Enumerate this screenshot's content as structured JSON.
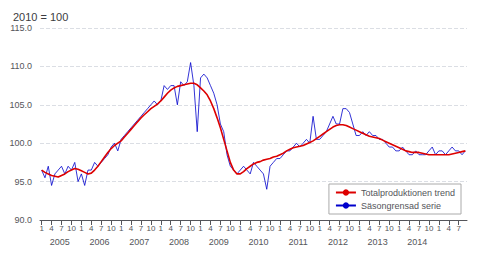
{
  "chart_data": {
    "type": "line",
    "title": "2010 = 100",
    "categories": [
      "1",
      null,
      null,
      "4",
      null,
      null,
      "7",
      null,
      null,
      "10",
      null,
      null,
      "1",
      null,
      null,
      "4",
      null,
      null,
      "7",
      null,
      null,
      "10",
      null,
      null,
      "1",
      null,
      null,
      "4",
      null,
      null,
      "7",
      null,
      null,
      "10",
      null,
      null,
      "1",
      null,
      null,
      "4",
      null,
      null,
      "7",
      null,
      null,
      "10",
      null,
      null,
      "1",
      null,
      null,
      "4",
      null,
      null,
      "7",
      null,
      null,
      "10",
      null,
      null,
      "1",
      null,
      null,
      "4",
      null,
      null,
      "7",
      null,
      null,
      "10",
      null,
      null,
      "1",
      null,
      null,
      "4",
      null,
      null,
      "7",
      null,
      null,
      "10",
      null,
      null,
      "1",
      null,
      null,
      "4",
      null,
      null,
      "7",
      null,
      null,
      "10",
      null,
      null,
      "1",
      null,
      null,
      "4",
      null,
      null,
      "7",
      null,
      null,
      "10",
      null,
      null,
      "1",
      null,
      null,
      "4",
      null,
      null,
      "7",
      null,
      null,
      "10",
      null,
      null,
      "1",
      null,
      null,
      "4",
      null,
      null,
      "7",
      null,
      null
    ],
    "annotations": [
      "2005",
      "2006",
      "2007",
      "2008",
      "2009",
      "2010",
      "2011",
      "2012",
      "2013",
      "2014"
    ],
    "series": [
      {
        "name": "Totalproduktionen trend",
        "color": "#dd0000",
        "line_style": "solid",
        "values": [
          96.5,
          96.2,
          96.0,
          95.8,
          95.7,
          95.6,
          95.8,
          96.0,
          96.3,
          96.5,
          96.7,
          96.6,
          96.4,
          96.2,
          96.0,
          96.1,
          96.5,
          97.0,
          97.6,
          98.2,
          98.8,
          99.3,
          99.7,
          100.0,
          100.3,
          100.8,
          101.3,
          101.8,
          102.3,
          102.8,
          103.3,
          103.7,
          104.1,
          104.5,
          104.8,
          105.1,
          105.5,
          106.0,
          106.5,
          106.9,
          107.2,
          107.4,
          107.5,
          107.6,
          107.7,
          107.8,
          107.8,
          107.6,
          107.2,
          106.8,
          106.3,
          105.5,
          104.5,
          103.3,
          102.0,
          100.5,
          99.0,
          97.5,
          96.5,
          96.0,
          96.0,
          96.3,
          96.7,
          97.0,
          97.3,
          97.5,
          97.6,
          97.8,
          97.9,
          98.0,
          98.2,
          98.3,
          98.5,
          98.7,
          99.0,
          99.2,
          99.4,
          99.5,
          99.6,
          99.7,
          99.9,
          100.1,
          100.3,
          100.6,
          100.9,
          101.2,
          101.5,
          101.8,
          102.1,
          102.3,
          102.4,
          102.4,
          102.3,
          102.1,
          101.9,
          101.7,
          101.5,
          101.3,
          101.1,
          100.9,
          100.8,
          100.7,
          100.6,
          100.4,
          100.2,
          100.0,
          99.8,
          99.6,
          99.4,
          99.2,
          99.0,
          98.9,
          98.8,
          98.8,
          98.8,
          98.7,
          98.6,
          98.5,
          98.5,
          98.5,
          98.5,
          98.5,
          98.5,
          98.5,
          98.6,
          98.7,
          98.8,
          98.9,
          99.0
        ]
      },
      {
        "name": "Säsongrensad serie",
        "color": "#0000cc",
        "line_style": "solid",
        "values": [
          96.5,
          95.5,
          97.0,
          94.5,
          96.0,
          96.5,
          97.0,
          96.0,
          97.0,
          96.5,
          97.5,
          95.0,
          96.0,
          94.5,
          96.5,
          96.5,
          97.5,
          97.0,
          97.5,
          98.0,
          98.5,
          99.5,
          100.0,
          99.0,
          100.5,
          101.0,
          101.5,
          102.0,
          102.5,
          103.0,
          103.5,
          104.0,
          104.5,
          105.0,
          105.5,
          105.0,
          105.5,
          107.5,
          107.0,
          107.5,
          107.5,
          105.0,
          108.0,
          107.5,
          108.0,
          110.5,
          107.5,
          101.5,
          108.5,
          109.0,
          108.5,
          107.5,
          106.5,
          105.0,
          102.5,
          101.5,
          98.5,
          97.0,
          96.5,
          96.0,
          96.5,
          97.0,
          96.5,
          96.0,
          97.5,
          97.0,
          96.5,
          96.0,
          94.0,
          97.0,
          97.5,
          98.0,
          98.0,
          98.5,
          99.0,
          99.0,
          99.5,
          100.0,
          99.5,
          100.0,
          100.5,
          100.0,
          103.5,
          100.5,
          100.5,
          101.0,
          101.5,
          102.5,
          103.5,
          102.5,
          102.5,
          104.5,
          104.5,
          104.0,
          102.5,
          101.0,
          101.0,
          101.5,
          101.0,
          101.5,
          101.0,
          101.0,
          100.5,
          100.5,
          100.0,
          99.5,
          99.5,
          99.0,
          99.0,
          99.5,
          99.0,
          98.5,
          98.5,
          99.0,
          98.5,
          98.5,
          98.5,
          99.0,
          99.5,
          98.5,
          99.0,
          99.0,
          98.5,
          99.0,
          99.5,
          99.0,
          99.0,
          98.5,
          99.0
        ]
      }
    ],
    "ylim": [
      90,
      115
    ],
    "yticks": [
      {
        "value": 90,
        "label": "90.0"
      },
      {
        "value": 95,
        "label": "95.0"
      },
      {
        "value": 100,
        "label": "100.0"
      },
      {
        "value": 105,
        "label": "105.0"
      },
      {
        "value": 110,
        "label": "110.0"
      },
      {
        "value": 115,
        "label": "115.0"
      }
    ],
    "grid": true,
    "legend": "lower right"
  }
}
